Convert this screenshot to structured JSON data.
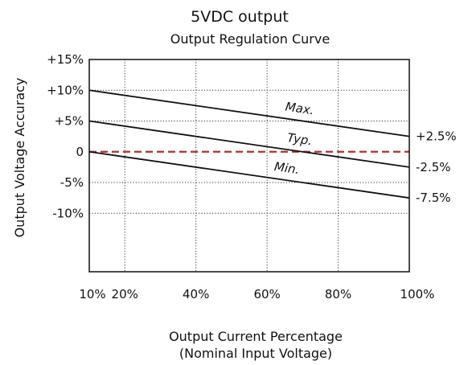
{
  "chart_data": {
    "type": "line",
    "title": "5VDC output",
    "subtitle": "Output Regulation Curve",
    "xlabel": "Output Current Percentage",
    "xlabel_sub": "(Nominal Input Voltage)",
    "ylabel": "Output Voltage Accuracy",
    "xlim": [
      10,
      100
    ],
    "ylim": [
      -15,
      15
    ],
    "x_ticks": [
      10,
      20,
      40,
      60,
      80,
      100
    ],
    "x_tick_labels": [
      "10%",
      "20%",
      "40%",
      "60%",
      "80%",
      "100%"
    ],
    "y_ticks": [
      15,
      10,
      5,
      0,
      -5,
      -10
    ],
    "y_tick_labels": [
      "+15%",
      "+10%",
      "+5%",
      "0",
      "-5%",
      "-10%"
    ],
    "grid": true,
    "grid_style": "dotted",
    "reference_line": {
      "y": 0,
      "color": "#b0312a",
      "style": "dashed"
    },
    "series": [
      {
        "name": "Max.",
        "x": [
          10,
          100
        ],
        "y": [
          10,
          2.5
        ],
        "end_label": "+2.5%"
      },
      {
        "name": "Typ.",
        "x": [
          10,
          100
        ],
        "y": [
          5,
          -2.5
        ],
        "end_label": "-2.5%"
      },
      {
        "name": "Min.",
        "x": [
          10,
          100
        ],
        "y": [
          0,
          -7.5
        ],
        "end_label": "-7.5%"
      }
    ],
    "line_color": "#111111"
  }
}
